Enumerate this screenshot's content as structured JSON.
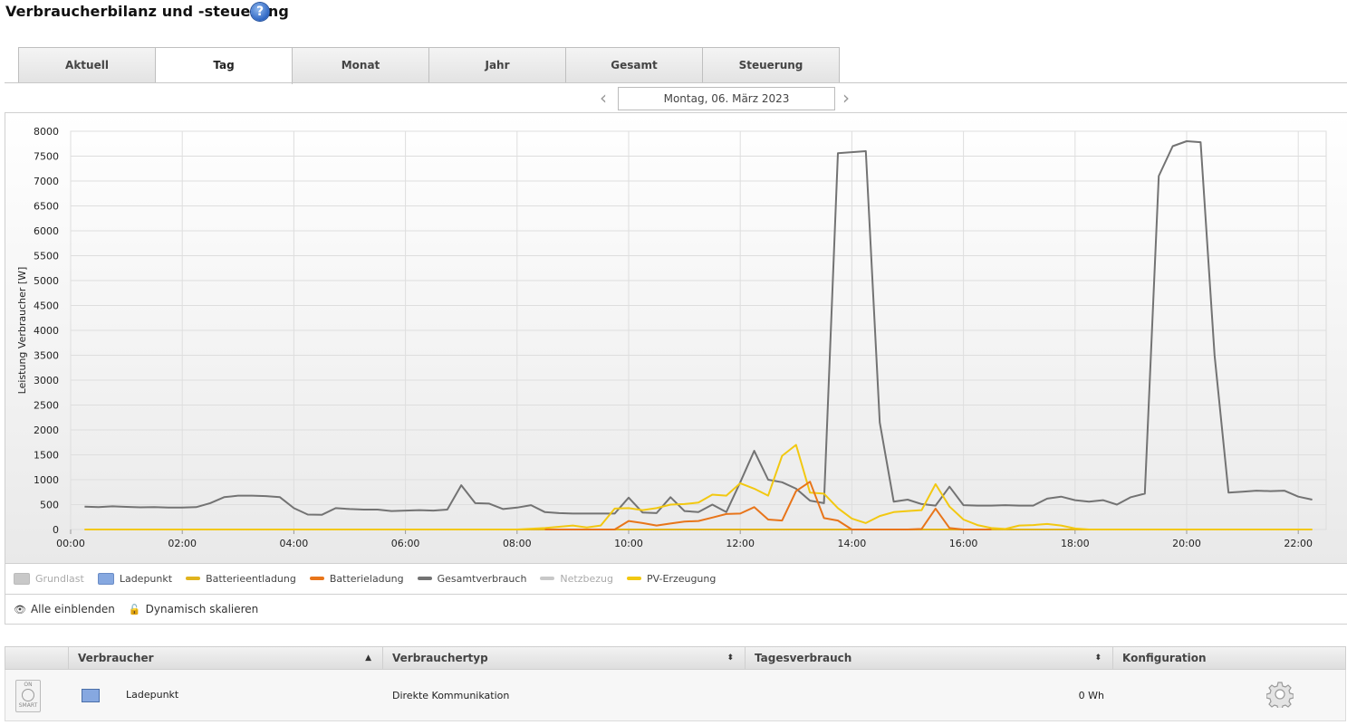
{
  "page": {
    "title": "Verbraucherbilanz und -steuerung",
    "help_icon": "help-icon"
  },
  "tabs": [
    {
      "label": "Aktuell",
      "active": false
    },
    {
      "label": "Tag",
      "active": true
    },
    {
      "label": "Monat",
      "active": false
    },
    {
      "label": "Jahr",
      "active": false
    },
    {
      "label": "Gesamt",
      "active": false
    },
    {
      "label": "Steuerung",
      "active": false
    }
  ],
  "date_nav": {
    "label": "Montag, 06. März 2023",
    "prev_icon": "chevron-left-icon",
    "next_icon": "chevron-right-icon"
  },
  "chart_data": {
    "type": "line",
    "ylabel": "Leistung Verbraucher [W]",
    "xlabel": "",
    "ylim": [
      0,
      8000
    ],
    "yticks": [
      "0",
      "500",
      "1000",
      "1500",
      "2000",
      "2500",
      "3000",
      "3500",
      "4000",
      "4500",
      "5000",
      "5500",
      "6000",
      "6500",
      "7000",
      "7500",
      "8000"
    ],
    "xticks": [
      "00:00",
      "02:00",
      "04:00",
      "06:00",
      "08:00",
      "10:00",
      "12:00",
      "14:00",
      "16:00",
      "18:00",
      "20:00",
      "22:00"
    ],
    "xlim_hours": [
      0,
      22.5
    ],
    "grid": true,
    "series": [
      {
        "name": "Gesamtverbrauch",
        "color": "#737373",
        "x": [
          0.25,
          0.5,
          0.75,
          1.0,
          1.25,
          1.5,
          1.75,
          2.0,
          2.25,
          2.5,
          2.75,
          3.0,
          3.25,
          3.5,
          3.75,
          4.0,
          4.25,
          4.5,
          4.75,
          5.0,
          5.25,
          5.5,
          5.75,
          6.0,
          6.25,
          6.5,
          6.75,
          7.0,
          7.25,
          7.5,
          7.75,
          8.0,
          8.25,
          8.5,
          8.75,
          9.0,
          9.25,
          9.5,
          9.75,
          10.0,
          10.25,
          10.5,
          10.75,
          11.0,
          11.25,
          11.5,
          11.75,
          12.0,
          12.25,
          12.5,
          12.75,
          13.0,
          13.25,
          13.5,
          13.75,
          14.0,
          14.25,
          14.5,
          14.75,
          15.0,
          15.25,
          15.5,
          15.75,
          16.0,
          16.25,
          16.5,
          16.75,
          17.0,
          17.25,
          17.5,
          17.75,
          18.0,
          18.25,
          18.5,
          18.75,
          19.0,
          19.25,
          19.5,
          19.75,
          20.0,
          20.25,
          20.5,
          20.75,
          21.0,
          21.25,
          21.5,
          21.75,
          22.0,
          22.25
        ],
        "y": [
          460,
          450,
          465,
          455,
          445,
          450,
          440,
          440,
          450,
          530,
          650,
          680,
          680,
          670,
          650,
          430,
          300,
          295,
          430,
          410,
          400,
          400,
          370,
          380,
          390,
          380,
          400,
          890,
          530,
          520,
          410,
          440,
          490,
          350,
          330,
          320,
          320,
          320,
          320,
          640,
          340,
          330,
          650,
          370,
          350,
          500,
          350,
          950,
          1580,
          1000,
          950,
          820,
          580,
          530,
          7560,
          7580,
          7600,
          2150,
          560,
          600,
          510,
          480,
          860,
          490,
          480,
          480,
          490,
          480,
          480,
          620,
          660,
          590,
          560,
          590,
          500,
          650,
          720,
          7100,
          7700,
          7800,
          7780,
          3500,
          740,
          760,
          780,
          770,
          780,
          660,
          600
        ]
      },
      {
        "name": "PV-Erzeugung",
        "color": "#f2c811",
        "x": [
          0.25,
          8.0,
          8.5,
          9.0,
          9.25,
          9.5,
          9.75,
          10.0,
          10.25,
          10.5,
          10.75,
          11.0,
          11.25,
          11.5,
          11.75,
          12.0,
          12.25,
          12.5,
          12.75,
          13.0,
          13.25,
          13.5,
          13.75,
          14.0,
          14.25,
          14.5,
          14.75,
          15.0,
          15.25,
          15.5,
          15.75,
          16.0,
          16.25,
          16.5,
          16.75,
          17.0,
          17.25,
          17.5,
          17.75,
          18.0,
          18.25,
          18.5,
          19.0,
          19.5,
          20.0,
          20.5,
          21.0,
          21.5,
          22.0,
          22.25
        ],
        "y": [
          0,
          0,
          30,
          80,
          40,
          80,
          420,
          430,
          390,
          430,
          500,
          510,
          540,
          700,
          680,
          930,
          820,
          680,
          1480,
          1700,
          740,
          720,
          430,
          220,
          130,
          270,
          350,
          370,
          390,
          910,
          460,
          200,
          90,
          30,
          10,
          80,
          90,
          110,
          80,
          20,
          0,
          0,
          0,
          0,
          0,
          0,
          0,
          0,
          0,
          0
        ]
      },
      {
        "name": "Batterieladung",
        "color": "#e8751a",
        "x": [
          8.5,
          9.75,
          10.0,
          10.25,
          10.5,
          10.75,
          11.0,
          11.25,
          11.5,
          11.75,
          12.0,
          12.25,
          12.5,
          12.75,
          13.0,
          13.25,
          13.5,
          13.75,
          14.0,
          15.0,
          15.25,
          15.5,
          15.75,
          16.0,
          16.5
        ],
        "y": [
          0,
          0,
          170,
          130,
          80,
          120,
          160,
          170,
          240,
          310,
          320,
          450,
          200,
          180,
          770,
          960,
          230,
          180,
          0,
          0,
          10,
          420,
          30,
          0,
          0
        ]
      },
      {
        "name": "Batterieentladung",
        "color": "#e0b31d",
        "x": [
          0.25,
          22.25
        ],
        "y": [
          0,
          0
        ]
      }
    ]
  },
  "legend": [
    {
      "label": "Grundlast",
      "color": "#c8c8c8",
      "kind": "box",
      "active": false
    },
    {
      "label": "Ladepunkt",
      "color": "#86a8e0",
      "kind": "box",
      "active": true
    },
    {
      "label": "Batterieentladung",
      "color": "#e0b31d",
      "kind": "line",
      "active": true
    },
    {
      "label": "Batterieladung",
      "color": "#e8751a",
      "kind": "line",
      "active": true
    },
    {
      "label": "Gesamtverbrauch",
      "color": "#737373",
      "kind": "line",
      "active": true
    },
    {
      "label": "Netzbezug",
      "color": "#c8c8c8",
      "kind": "line",
      "active": false
    },
    {
      "label": "PV-Erzeugung",
      "color": "#f2c811",
      "kind": "line",
      "active": true
    }
  ],
  "controls": {
    "show_all": "Alle einblenden",
    "show_all_icon": "eye-icon",
    "dyn_scale": "Dynamisch skalieren",
    "dyn_scale_icon": "unlock-icon"
  },
  "table": {
    "headers": {
      "col0": "",
      "verbraucher": "Verbraucher",
      "typ": "Verbrauchertyp",
      "tag": "Tagesverbrauch",
      "konfig": "Konfiguration"
    },
    "sort_icons": {
      "verbraucher": "▲",
      "typ": "⬍",
      "tag": "⬍"
    },
    "rows": [
      {
        "badge_top": "ON",
        "badge_bottom": "SMART",
        "color": "#86a8e0",
        "name": "Ladepunkt",
        "typ": "Direkte Kommunikation",
        "verbrauch": "0 Wh",
        "config_icon": "gear-icon"
      }
    ]
  }
}
